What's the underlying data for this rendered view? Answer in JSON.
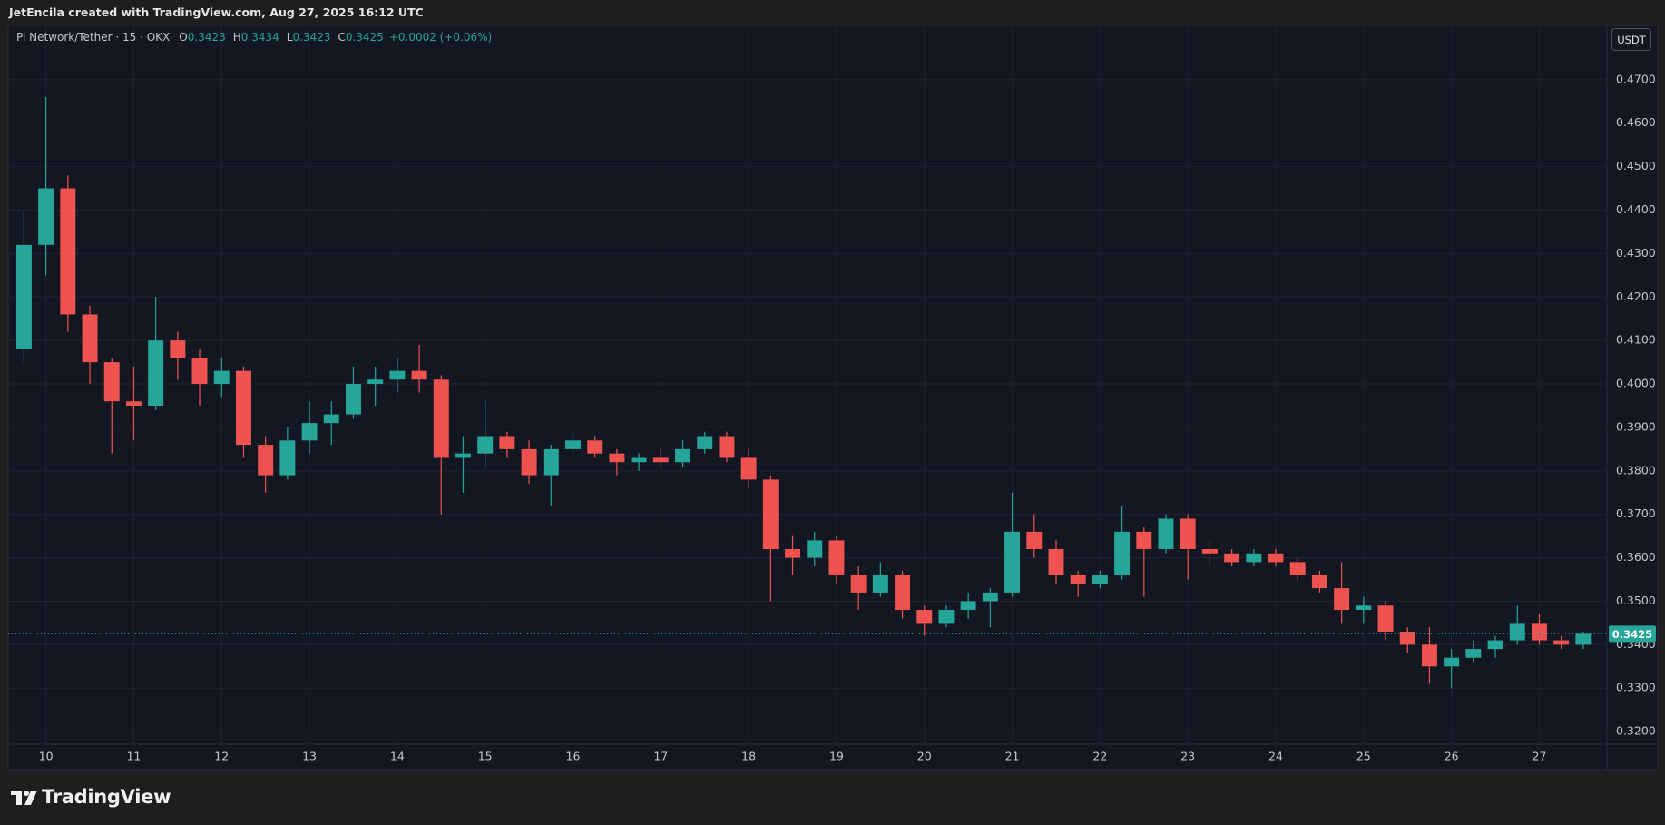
{
  "header": {
    "text": "JetEncila created with TradingView.com, Aug 27, 2025 16:12 UTC"
  },
  "legend": {
    "symbol": "Pi Network/Tether · 15 · OKX",
    "fields": [
      {
        "key": "O",
        "value": "0.3423"
      },
      {
        "key": "H",
        "value": "0.3434"
      },
      {
        "key": "L",
        "value": "0.3423"
      },
      {
        "key": "C",
        "value": "0.3425"
      }
    ],
    "change": "+0.0002 (+0.06%)"
  },
  "currency_button": "USDT",
  "branding": "TradingView",
  "chart_data": {
    "type": "candlestick",
    "x": [
      9.75,
      10,
      10.25,
      10.5,
      10.75,
      11,
      11.25,
      11.5,
      11.75,
      12,
      12.25,
      12.5,
      12.75,
      13,
      13.25,
      13.5,
      13.75,
      14,
      14.25,
      14.5,
      14.75,
      15,
      15.25,
      15.5,
      15.75,
      16,
      16.25,
      16.5,
      16.75,
      17,
      17.25,
      17.5,
      17.75,
      18,
      18.25,
      18.5,
      18.75,
      19,
      19.25,
      19.5,
      19.75,
      20,
      20.25,
      20.5,
      20.75,
      21,
      21.25,
      21.5,
      21.75,
      22,
      22.25,
      22.5,
      22.75,
      23,
      23.25,
      23.5,
      23.75,
      24,
      24.25,
      24.5,
      24.75,
      25,
      25.25,
      25.5,
      25.75,
      26,
      26.25,
      26.5,
      26.75,
      27,
      27.25,
      27.5
    ],
    "open": [
      0.408,
      0.432,
      0.445,
      0.416,
      0.405,
      0.396,
      0.395,
      0.41,
      0.406,
      0.4,
      0.403,
      0.386,
      0.379,
      0.387,
      0.391,
      0.393,
      0.4,
      0.401,
      0.403,
      0.401,
      0.383,
      0.384,
      0.388,
      0.385,
      0.379,
      0.385,
      0.387,
      0.384,
      0.382,
      0.383,
      0.382,
      0.385,
      0.388,
      0.383,
      0.378,
      0.362,
      0.36,
      0.364,
      0.356,
      0.352,
      0.356,
      0.348,
      0.345,
      0.348,
      0.35,
      0.352,
      0.366,
      0.362,
      0.356,
      0.354,
      0.356,
      0.366,
      0.362,
      0.369,
      0.362,
      0.361,
      0.359,
      0.361,
      0.359,
      0.356,
      0.353,
      0.348,
      0.349,
      0.343,
      0.34,
      0.335,
      0.337,
      0.339,
      0.341,
      0.345,
      0.341,
      0.34
    ],
    "high": [
      0.44,
      0.466,
      0.448,
      0.418,
      0.406,
      0.404,
      0.42,
      0.412,
      0.408,
      0.406,
      0.404,
      0.388,
      0.39,
      0.396,
      0.396,
      0.404,
      0.404,
      0.406,
      0.409,
      0.402,
      0.388,
      0.396,
      0.389,
      0.387,
      0.386,
      0.389,
      0.388,
      0.385,
      0.384,
      0.385,
      0.387,
      0.389,
      0.389,
      0.385,
      0.379,
      0.365,
      0.366,
      0.365,
      0.358,
      0.359,
      0.357,
      0.349,
      0.349,
      0.352,
      0.353,
      0.375,
      0.37,
      0.364,
      0.357,
      0.357,
      0.372,
      0.367,
      0.37,
      0.37,
      0.364,
      0.362,
      0.362,
      0.362,
      0.36,
      0.357,
      0.359,
      0.351,
      0.35,
      0.344,
      0.344,
      0.339,
      0.341,
      0.342,
      0.349,
      0.347,
      0.342,
      0.343
    ],
    "low": [
      0.405,
      0.425,
      0.412,
      0.4,
      0.384,
      0.387,
      0.394,
      0.401,
      0.395,
      0.397,
      0.383,
      0.375,
      0.378,
      0.384,
      0.386,
      0.392,
      0.395,
      0.398,
      0.398,
      0.37,
      0.375,
      0.381,
      0.383,
      0.377,
      0.372,
      0.383,
      0.383,
      0.379,
      0.38,
      0.381,
      0.381,
      0.384,
      0.382,
      0.376,
      0.35,
      0.356,
      0.358,
      0.354,
      0.348,
      0.351,
      0.346,
      0.342,
      0.344,
      0.346,
      0.344,
      0.351,
      0.36,
      0.354,
      0.351,
      0.353,
      0.355,
      0.351,
      0.361,
      0.355,
      0.358,
      0.358,
      0.358,
      0.358,
      0.355,
      0.352,
      0.345,
      0.345,
      0.341,
      0.338,
      0.331,
      0.33,
      0.336,
      0.337,
      0.34,
      0.34,
      0.339,
      0.339
    ],
    "close": [
      0.432,
      0.445,
      0.416,
      0.405,
      0.396,
      0.395,
      0.41,
      0.406,
      0.4,
      0.403,
      0.386,
      0.379,
      0.387,
      0.391,
      0.393,
      0.4,
      0.401,
      0.403,
      0.401,
      0.383,
      0.384,
      0.388,
      0.385,
      0.379,
      0.385,
      0.387,
      0.384,
      0.382,
      0.383,
      0.382,
      0.385,
      0.388,
      0.383,
      0.378,
      0.362,
      0.36,
      0.364,
      0.356,
      0.352,
      0.356,
      0.348,
      0.345,
      0.348,
      0.35,
      0.352,
      0.366,
      0.362,
      0.356,
      0.354,
      0.356,
      0.366,
      0.362,
      0.369,
      0.362,
      0.361,
      0.359,
      0.361,
      0.359,
      0.356,
      0.353,
      0.348,
      0.349,
      0.343,
      0.34,
      0.335,
      0.337,
      0.339,
      0.341,
      0.345,
      0.341,
      0.34,
      0.3425
    ],
    "up_color": "#26a69a",
    "down_color": "#ef5350",
    "xlim": [
      9.57,
      27.77
    ],
    "xticks": [
      10,
      11,
      12,
      13,
      14,
      15,
      16,
      17,
      18,
      19,
      20,
      21,
      22,
      23,
      24,
      25,
      26,
      27
    ],
    "ylim": [
      0.3171,
      0.4825
    ],
    "yticks": [
      {
        "value": 0.32,
        "label": "0.3200"
      },
      {
        "value": 0.33,
        "label": "0.3300"
      },
      {
        "value": 0.34,
        "label": "0.3400"
      },
      {
        "value": 0.35,
        "label": "0.3500"
      },
      {
        "value": 0.36,
        "label": "0.3600"
      },
      {
        "value": 0.37,
        "label": "0.3700"
      },
      {
        "value": 0.38,
        "label": "0.3800"
      },
      {
        "value": 0.39,
        "label": "0.3900"
      },
      {
        "value": 0.4,
        "label": "0.4000"
      },
      {
        "value": 0.41,
        "label": "0.4100"
      },
      {
        "value": 0.42,
        "label": "0.4200"
      },
      {
        "value": 0.43,
        "label": "0.4300"
      },
      {
        "value": 0.44,
        "label": "0.4400"
      },
      {
        "value": 0.45,
        "label": "0.4500"
      },
      {
        "value": 0.46,
        "label": "0.4600"
      },
      {
        "value": 0.47,
        "label": "0.4700"
      }
    ],
    "grid": true,
    "last_price": {
      "value": 0.3425,
      "label": "0.3425"
    }
  }
}
